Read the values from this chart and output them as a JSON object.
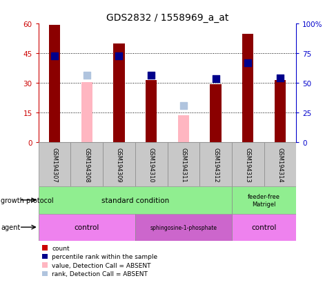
{
  "title": "GDS2832 / 1558969_a_at",
  "samples": [
    "GSM194307",
    "GSM194308",
    "GSM194309",
    "GSM194310",
    "GSM194311",
    "GSM194312",
    "GSM194313",
    "GSM194314"
  ],
  "count_present": [
    59.5,
    null,
    50.0,
    31.5,
    null,
    29.5,
    55.0,
    31.5
  ],
  "count_absent": [
    null,
    30.5,
    null,
    null,
    13.5,
    null,
    null,
    null
  ],
  "rank_present": [
    43.5,
    null,
    43.5,
    34.0,
    null,
    32.0,
    40.0,
    32.5
  ],
  "rank_absent": [
    null,
    34.0,
    null,
    null,
    18.5,
    null,
    null,
    null
  ],
  "ylim_left": [
    0,
    60
  ],
  "ylim_right": [
    0,
    100
  ],
  "yticks_left": [
    0,
    15,
    30,
    45,
    60
  ],
  "yticks_right": [
    0,
    25,
    50,
    75,
    100
  ],
  "ytick_labels_right": [
    "0",
    "25",
    "50",
    "75",
    "100%"
  ],
  "hlines": [
    15,
    30,
    45
  ],
  "bar_color_present": "#8B0000",
  "bar_color_absent": "#FFB6C1",
  "rank_color_present": "#00008B",
  "rank_color_absent": "#B0C4DE",
  "bar_width": 0.35,
  "rank_marker_size": 45,
  "left_axis_color": "#CC0000",
  "right_axis_color": "#0000CC",
  "sample_bg_color": "#C8C8C8",
  "gp_color": "#90EE90",
  "agent_light_color": "#EE82EE",
  "agent_dark_color": "#CC66CC",
  "agent_light2_color": "#EE82EE",
  "growth_protocol_label": "growth protocol",
  "agent_label": "agent",
  "legend_items": [
    {
      "label": "count",
      "color": "#CC0000"
    },
    {
      "label": "percentile rank within the sample",
      "color": "#00008B"
    },
    {
      "label": "value, Detection Call = ABSENT",
      "color": "#FFB6C1"
    },
    {
      "label": "rank, Detection Call = ABSENT",
      "color": "#B0C4DE"
    }
  ]
}
